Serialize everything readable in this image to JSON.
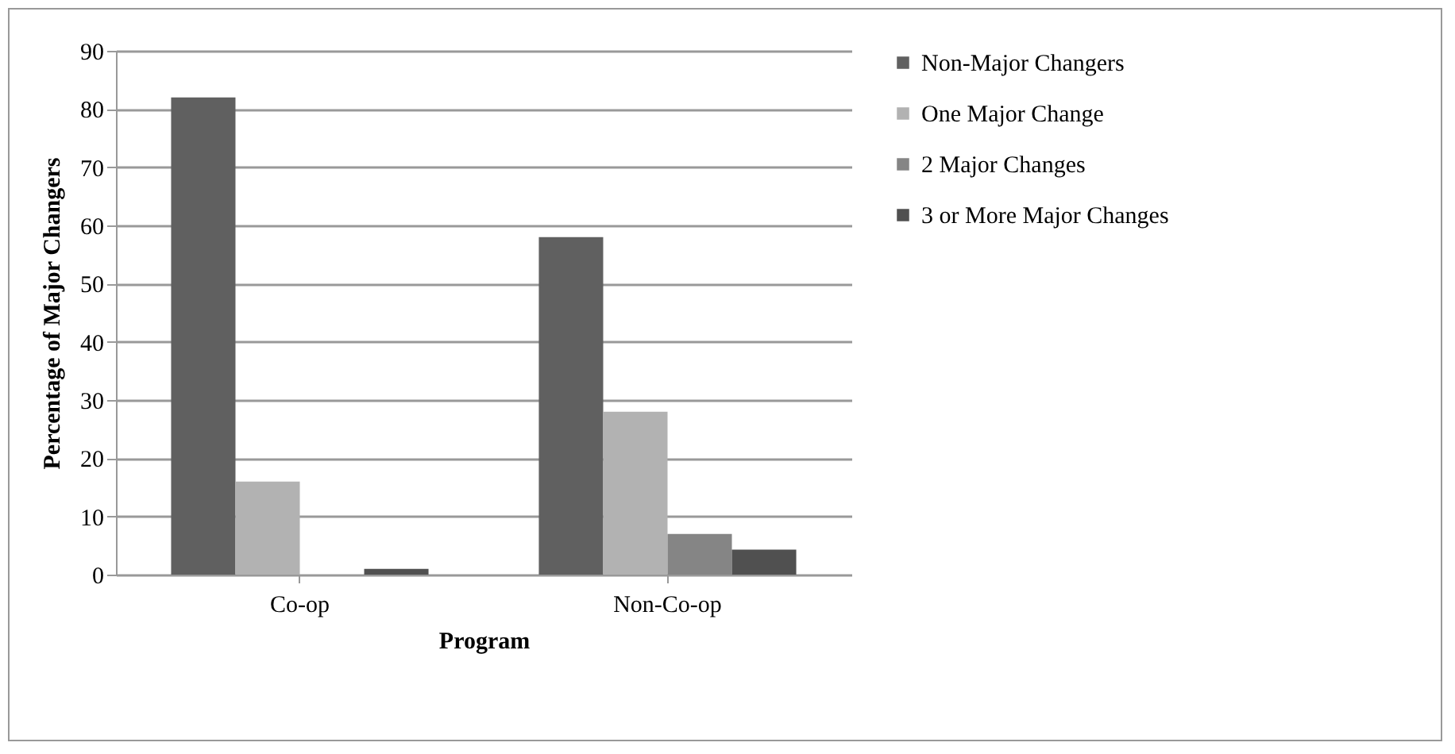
{
  "chart_data": {
    "type": "bar",
    "xlabel": "Program",
    "ylabel": "Percentage of Major Changers",
    "categories": [
      "Co-op",
      "Non-Co-op"
    ],
    "series": [
      {
        "name": "Non-Major Changers",
        "color": "#606060",
        "values": [
          82,
          58
        ]
      },
      {
        "name": "One Major Change",
        "color": "#b2b2b2",
        "values": [
          16,
          28
        ]
      },
      {
        "name": "2 Major Changes",
        "color": "#858585",
        "values": [
          0,
          7
        ]
      },
      {
        "name": "3 or More Major Changes",
        "color": "#505050",
        "values": [
          1,
          4.3
        ]
      }
    ],
    "ylim": [
      0,
      90
    ],
    "yticks": [
      0,
      10,
      20,
      30,
      40,
      50,
      60,
      70,
      80,
      90
    ],
    "grid": "y",
    "legend": "right"
  }
}
